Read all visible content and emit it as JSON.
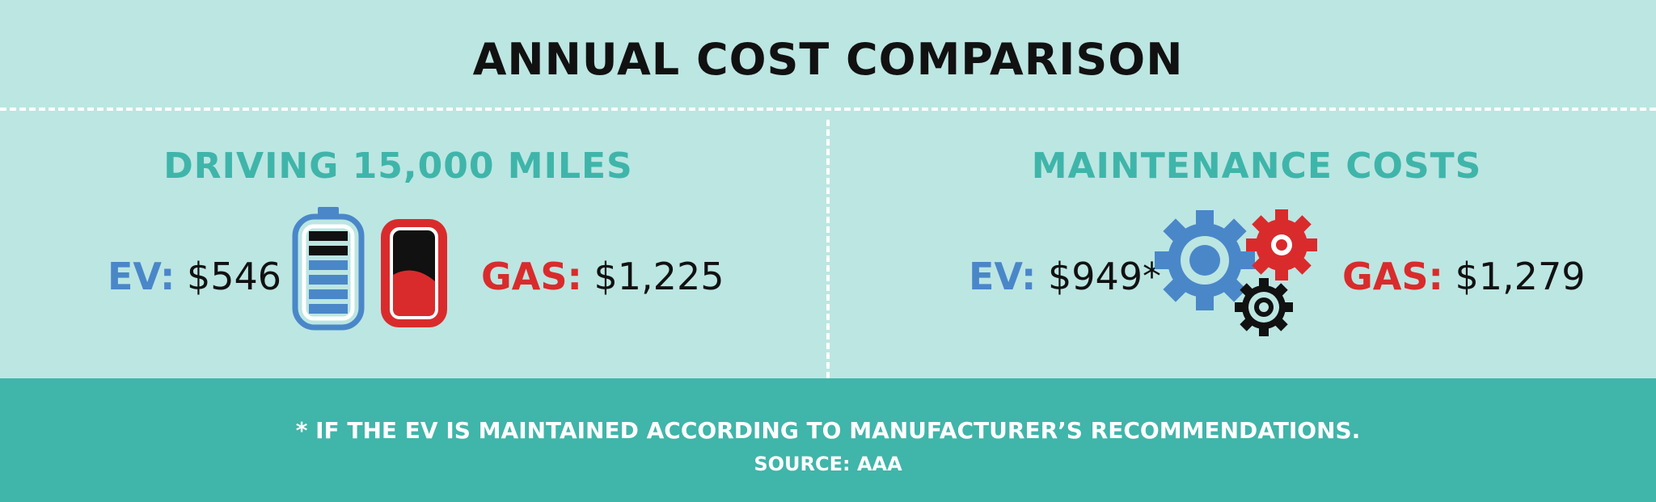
{
  "title": "ANNUAL COST COMPARISON",
  "colors": {
    "background": "#bce6e2",
    "footer": "#40b5aa",
    "heading": "#3fb5aa",
    "ev": "#4a87c9",
    "gas": "#d92b2c"
  },
  "driving": {
    "heading": "DRIVING 15,000 MILES",
    "ev_label": "EV:",
    "ev_value": "$546",
    "gas_label": "GAS:",
    "gas_value": "$1,225",
    "icons": [
      "battery-icon",
      "fuel-tank-icon"
    ]
  },
  "maintenance": {
    "heading": "MAINTENANCE COSTS",
    "ev_label": "EV:",
    "ev_value": "$949*",
    "gas_label": "GAS:",
    "gas_value": "$1,279",
    "icons": [
      "gears-icon"
    ]
  },
  "footer": {
    "note": "* IF THE EV IS MAINTAINED ACCORDING TO MANUFACTURER’S RECOMMENDATIONS.",
    "source": "SOURCE: AAA"
  }
}
